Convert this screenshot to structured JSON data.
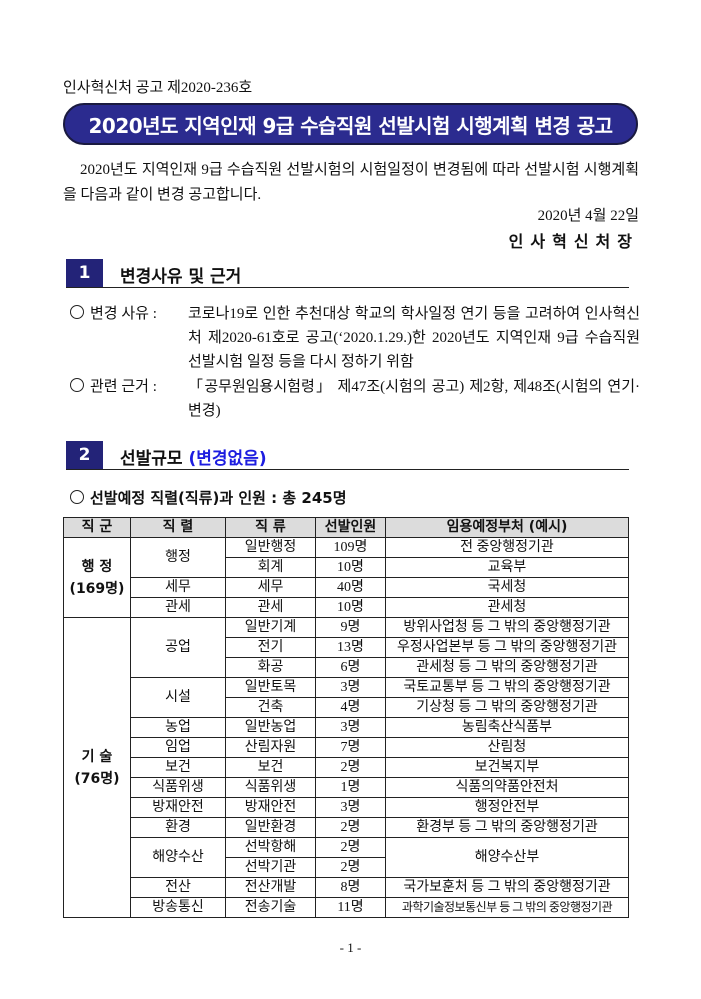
{
  "notice_number": "인사혁신처 공고 제2020-236호",
  "title": "2020년도 지역인재 9급 수습직원 선발시험 시행계획 변경 공고",
  "intro": "2020년도 지역인재 9급 수습직원 선발시험의 시험일정이 변경됨에 따라 선발시험 시행계획을 다음과 같이 변경 공고합니다.",
  "date": "2020년 4월 22일",
  "signatory": "인사혁신처장",
  "section1": {
    "number": "1",
    "title": "변경사유 및 근거",
    "items": [
      {
        "label": "변경 사유 :",
        "text": "코로나19로 인한 추천대상 학교의 학사일정 연기 등을 고려하여 인사혁신처 제2020-61호로 공고(‘2020.1.29.)한 2020년도 지역인재 9급 수습직원 선발시험 일정 등을 다시 정하기 위함"
      },
      {
        "label": "관련 근거 :",
        "text": "「공무원임용시험령」 제47조(시험의 공고) 제2항, 제48조(시험의 연기·변경)"
      }
    ]
  },
  "section2": {
    "number": "2",
    "title": "선발규모",
    "subtitle": "(변경없음)",
    "bullet": "선발예정 직렬(직류)과 인원 : 총 245명",
    "table": {
      "headers": [
        "직 군",
        "직 렬",
        "직 류",
        "선발인원",
        "임용예정부처 (예시)"
      ],
      "groups": [
        {
          "name": "행 정",
          "count": "(169명)",
          "series": [
            {
              "name": "행정",
              "classes": [
                {
                  "name": "일반행정",
                  "count": "109명",
                  "agency": "전 중앙행정기관"
                },
                {
                  "name": "회계",
                  "count": "10명",
                  "agency": "교육부"
                }
              ]
            },
            {
              "name": "세무",
              "classes": [
                {
                  "name": "세무",
                  "count": "40명",
                  "agency": "국세청"
                }
              ]
            },
            {
              "name": "관세",
              "classes": [
                {
                  "name": "관세",
                  "count": "10명",
                  "agency": "관세청"
                }
              ]
            }
          ]
        },
        {
          "name": "기 술",
          "count": "(76명)",
          "series": [
            {
              "name": "공업",
              "classes": [
                {
                  "name": "일반기계",
                  "count": "9명",
                  "agency": "방위사업청 등 그 밖의 중앙행정기관"
                },
                {
                  "name": "전기",
                  "count": "13명",
                  "agency": "우정사업본부 등 그 밖의 중앙행정기관"
                },
                {
                  "name": "화공",
                  "count": "6명",
                  "agency": "관세청 등 그 밖의 중앙행정기관"
                }
              ]
            },
            {
              "name": "시설",
              "classes": [
                {
                  "name": "일반토목",
                  "count": "3명",
                  "agency": "국토교통부 등 그 밖의 중앙행정기관"
                },
                {
                  "name": "건축",
                  "count": "4명",
                  "agency": "기상청 등 그 밖의 중앙행정기관"
                }
              ]
            },
            {
              "name": "농업",
              "classes": [
                {
                  "name": "일반농업",
                  "count": "3명",
                  "agency": "농림축산식품부"
                }
              ]
            },
            {
              "name": "임업",
              "classes": [
                {
                  "name": "산림자원",
                  "count": "7명",
                  "agency": "산림청"
                }
              ]
            },
            {
              "name": "보건",
              "classes": [
                {
                  "name": "보건",
                  "count": "2명",
                  "agency": "보건복지부"
                }
              ]
            },
            {
              "name": "식품위생",
              "classes": [
                {
                  "name": "식품위생",
                  "count": "1명",
                  "agency": "식품의약품안전처"
                }
              ]
            },
            {
              "name": "방재안전",
              "classes": [
                {
                  "name": "방재안전",
                  "count": "3명",
                  "agency": "행정안전부"
                }
              ]
            },
            {
              "name": "환경",
              "classes": [
                {
                  "name": "일반환경",
                  "count": "2명",
                  "agency": "환경부 등 그 밖의 중앙행정기관"
                }
              ]
            },
            {
              "name": "해양수산",
              "agency": "해양수산부",
              "classes": [
                {
                  "name": "선박항해",
                  "count": "2명"
                },
                {
                  "name": "선박기관",
                  "count": "2명"
                }
              ]
            },
            {
              "name": "전산",
              "classes": [
                {
                  "name": "전산개발",
                  "count": "8명",
                  "agency": "국가보훈처 등 그 밖의 중앙행정기관"
                }
              ]
            },
            {
              "name": "방송통신",
              "classes": [
                {
                  "name": "전송기술",
                  "count": "11명",
                  "agency": "과학기술정보통신부 등 그 밖의 중앙행정기관"
                }
              ]
            }
          ]
        }
      ]
    }
  },
  "page_number": "- 1 -",
  "colors": {
    "banner": "#2b2b8f",
    "section_box": "#232378",
    "subtitle": "#1d1de0"
  }
}
